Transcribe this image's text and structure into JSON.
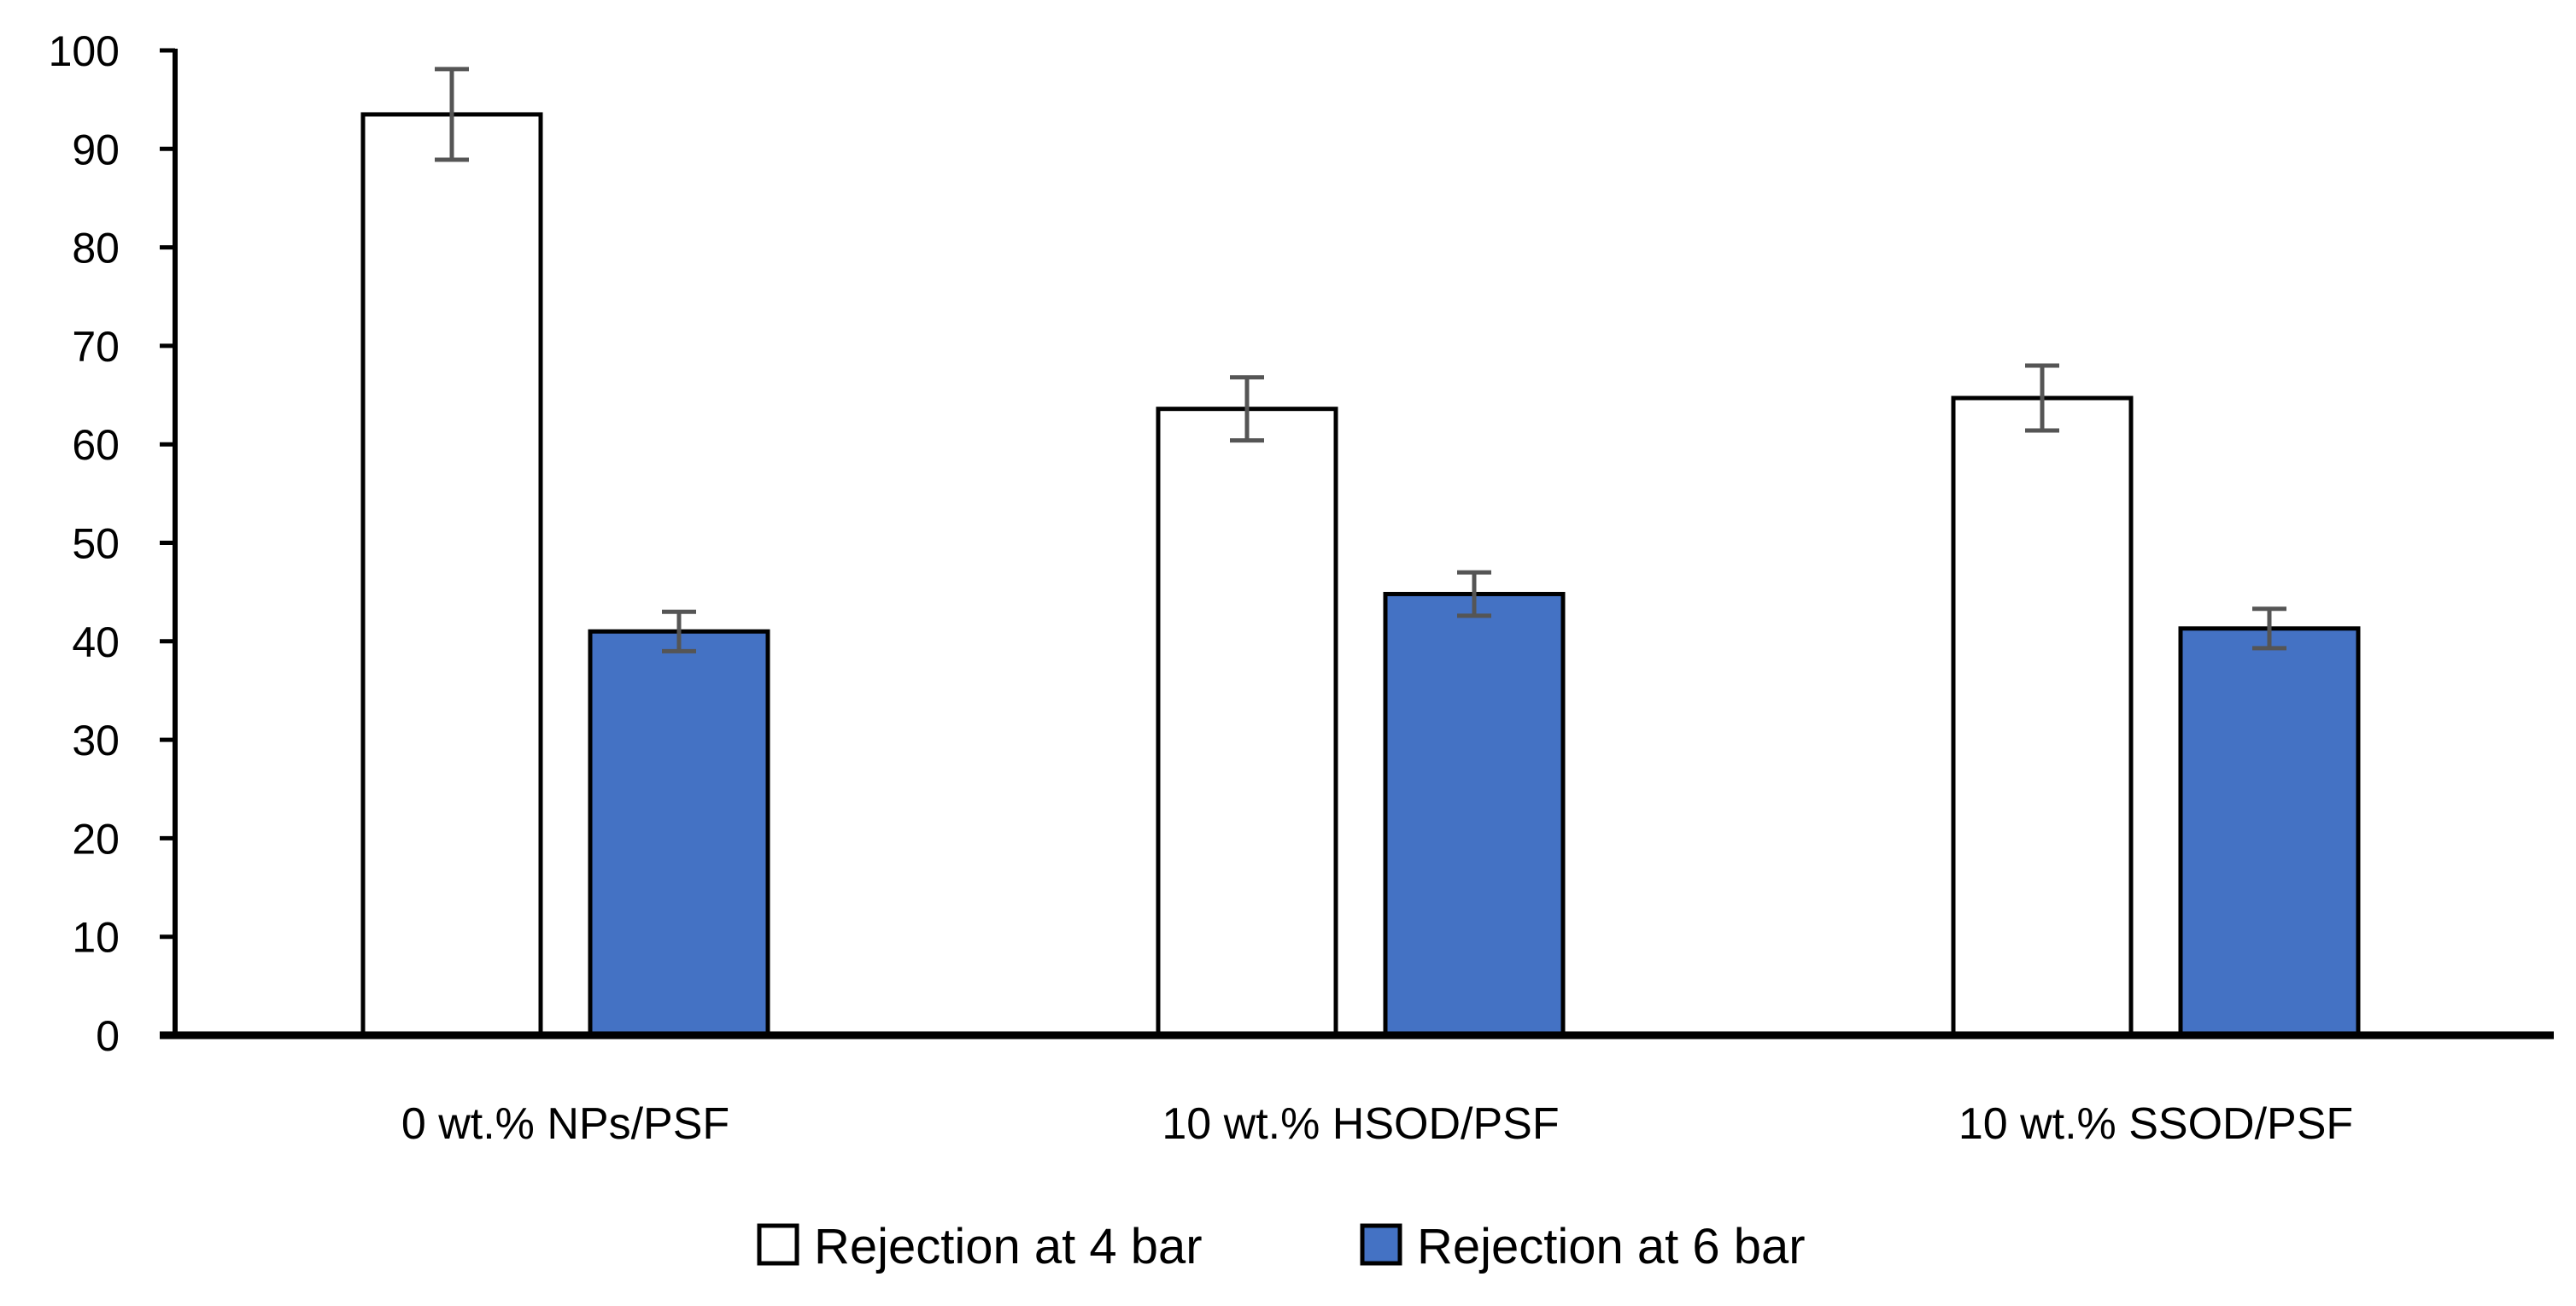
{
  "chart_data": {
    "type": "bar",
    "title": "",
    "xlabel": "",
    "ylabel": "",
    "ylim": [
      0,
      100
    ],
    "yticks": [
      0,
      10,
      20,
      30,
      40,
      50,
      60,
      70,
      80,
      90,
      100
    ],
    "grid": false,
    "categories": [
      "0 wt.% NPs/PSF",
      "10 wt.% HSOD/PSF",
      "10 wt.% SSOD/PSF"
    ],
    "series": [
      {
        "name": "Rejection at 4 bar",
        "color": "#ffffff",
        "values": [
          93.5,
          63.6,
          64.7
        ],
        "errors": [
          4.6,
          3.2,
          3.3
        ]
      },
      {
        "name": "Rejection at 6 bar",
        "color": "#4472c4",
        "values": [
          41.0,
          44.8,
          41.3
        ],
        "errors": [
          2.0,
          2.2,
          2.0
        ]
      }
    ],
    "legend_position": "bottom-center"
  }
}
